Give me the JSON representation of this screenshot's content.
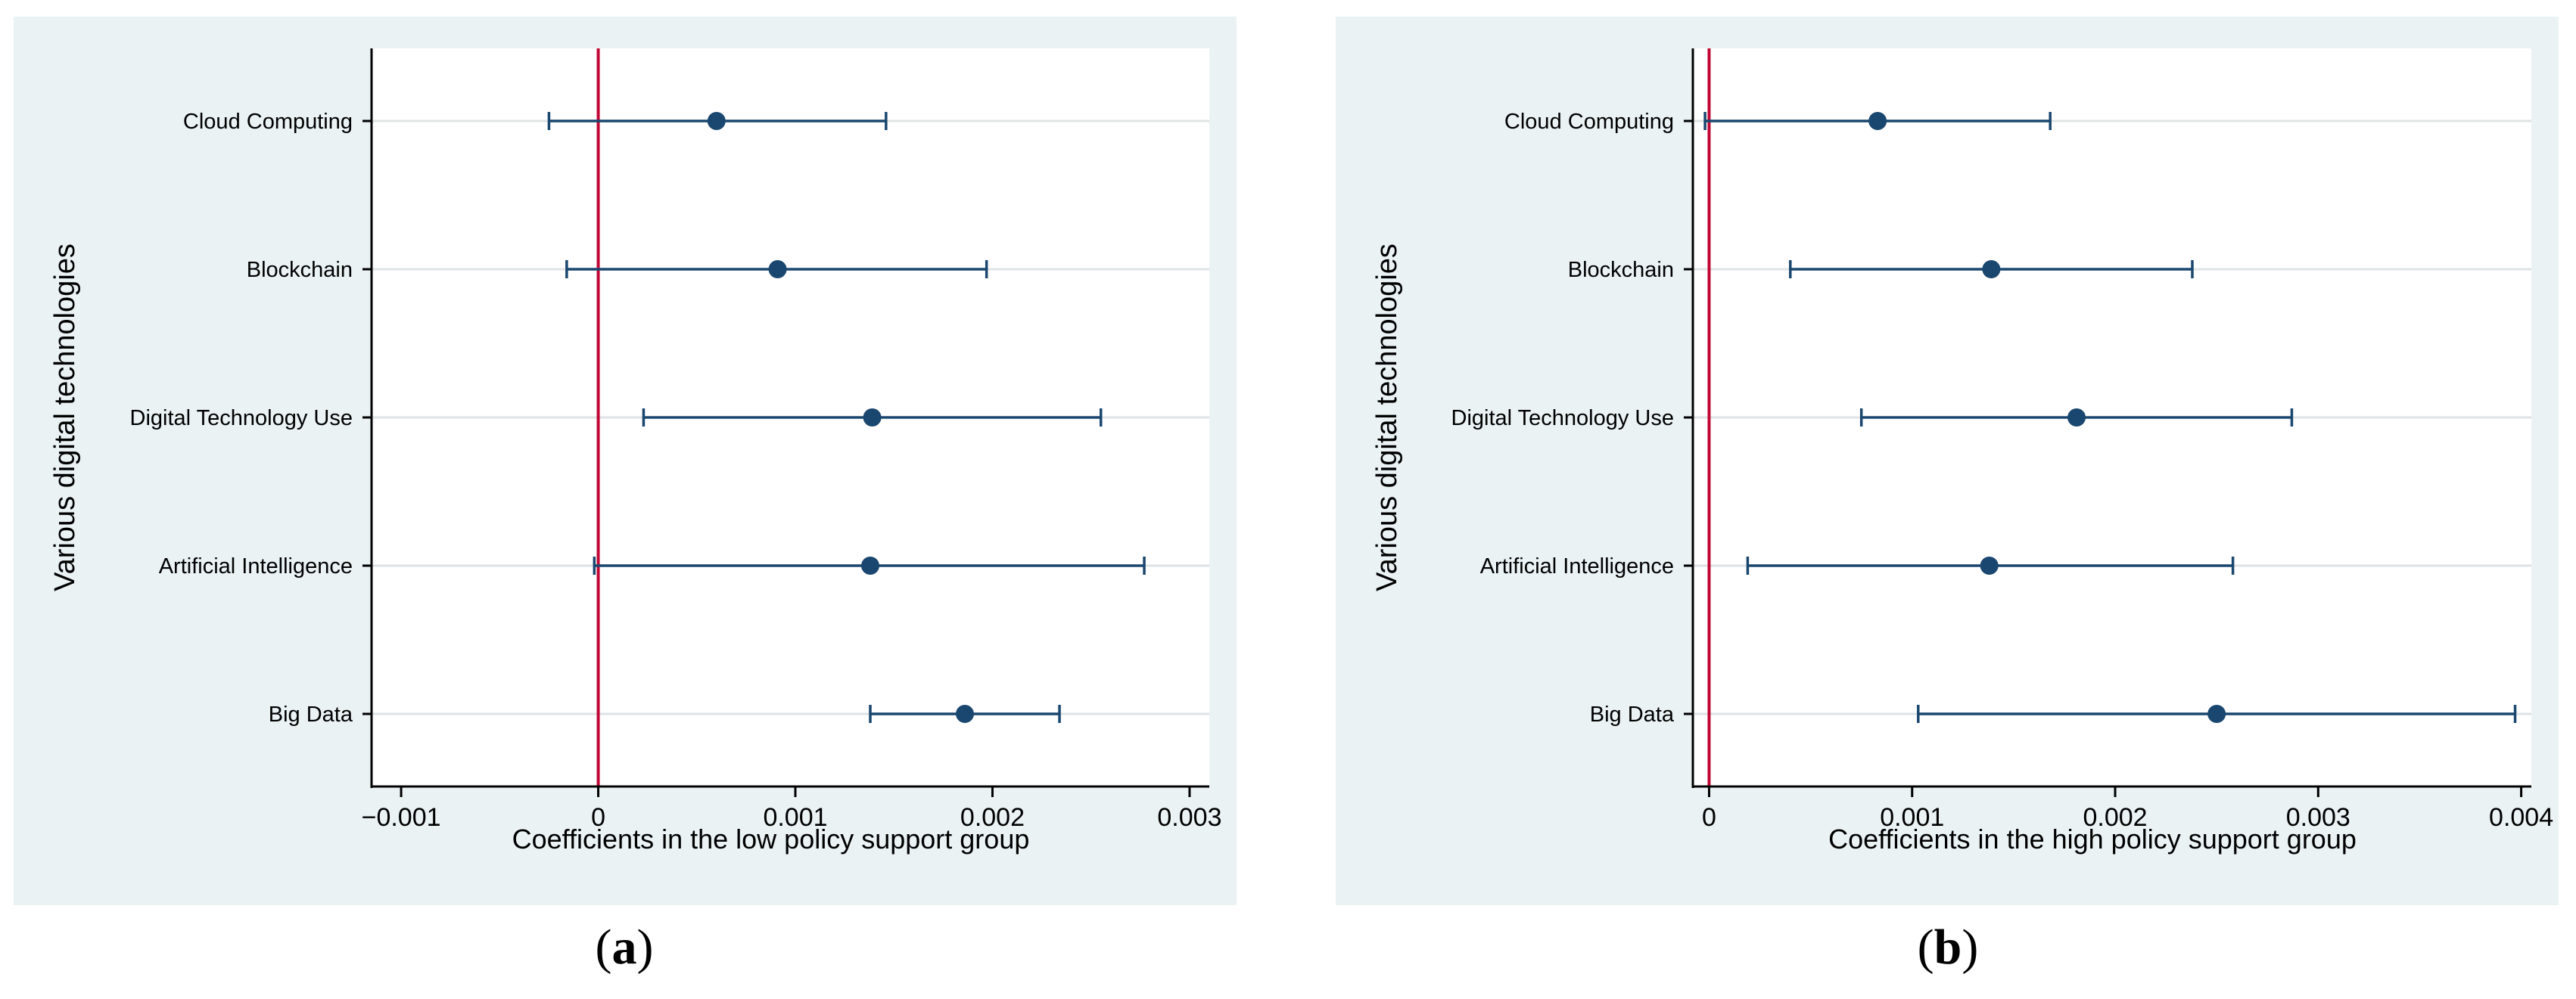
{
  "chart_data": [
    {
      "type": "coefficient-plot",
      "panel_label": "a",
      "xlabel": "Coefficients in the low policy support group",
      "ylabel": "Various digital technologies",
      "xlim": [
        -0.00115,
        0.0031
      ],
      "xticks": [
        -0.001,
        0,
        0.001,
        0.002,
        0.003
      ],
      "xtick_labels": [
        "−0.001",
        "0",
        "0.001",
        "0.002",
        "0.003"
      ],
      "reference_line": 0,
      "grid": "horizontal",
      "points": [
        {
          "label": "Cloud Computing",
          "estimate": 0.0006,
          "ci_low": -0.00025,
          "ci_high": 0.00146
        },
        {
          "label": "Blockchain",
          "estimate": 0.00091,
          "ci_low": -0.00016,
          "ci_high": 0.00197
        },
        {
          "label": "Digital Technology Use",
          "estimate": 0.00139,
          "ci_low": 0.00023,
          "ci_high": 0.00255
        },
        {
          "label": "Artificial Intelligence",
          "estimate": 0.00138,
          "ci_low": -2e-05,
          "ci_high": 0.00277
        },
        {
          "label": "Big Data",
          "estimate": 0.00186,
          "ci_low": 0.00138,
          "ci_high": 0.00234
        }
      ]
    },
    {
      "type": "coefficient-plot",
      "panel_label": "b",
      "xlabel": "Coefficients in the high policy support group",
      "ylabel": "Various digital technologies",
      "xlim": [
        -8e-05,
        0.00405
      ],
      "xticks": [
        0,
        0.001,
        0.002,
        0.003,
        0.004
      ],
      "xtick_labels": [
        "0",
        "0.001",
        "0.002",
        "0.003",
        "0.004"
      ],
      "reference_line": 0,
      "grid": "horizontal",
      "points": [
        {
          "label": "Cloud Computing",
          "estimate": 0.00083,
          "ci_low": -2e-05,
          "ci_high": 0.00168
        },
        {
          "label": "Blockchain",
          "estimate": 0.00139,
          "ci_low": 0.0004,
          "ci_high": 0.00238
        },
        {
          "label": "Digital Technology Use",
          "estimate": 0.00181,
          "ci_low": 0.00075,
          "ci_high": 0.00287
        },
        {
          "label": "Artificial Intelligence",
          "estimate": 0.00138,
          "ci_low": 0.00019,
          "ci_high": 0.00258
        },
        {
          "label": "Big Data",
          "estimate": 0.0025,
          "ci_low": 0.00103,
          "ci_high": 0.00397
        }
      ]
    }
  ],
  "colors": {
    "panel_background": "#eaf2f3",
    "plot_background": "#ffffff",
    "marker": "#1a476f",
    "reference_line": "#c10534",
    "gridline": "#dfe3e5",
    "axis": "#000000"
  }
}
